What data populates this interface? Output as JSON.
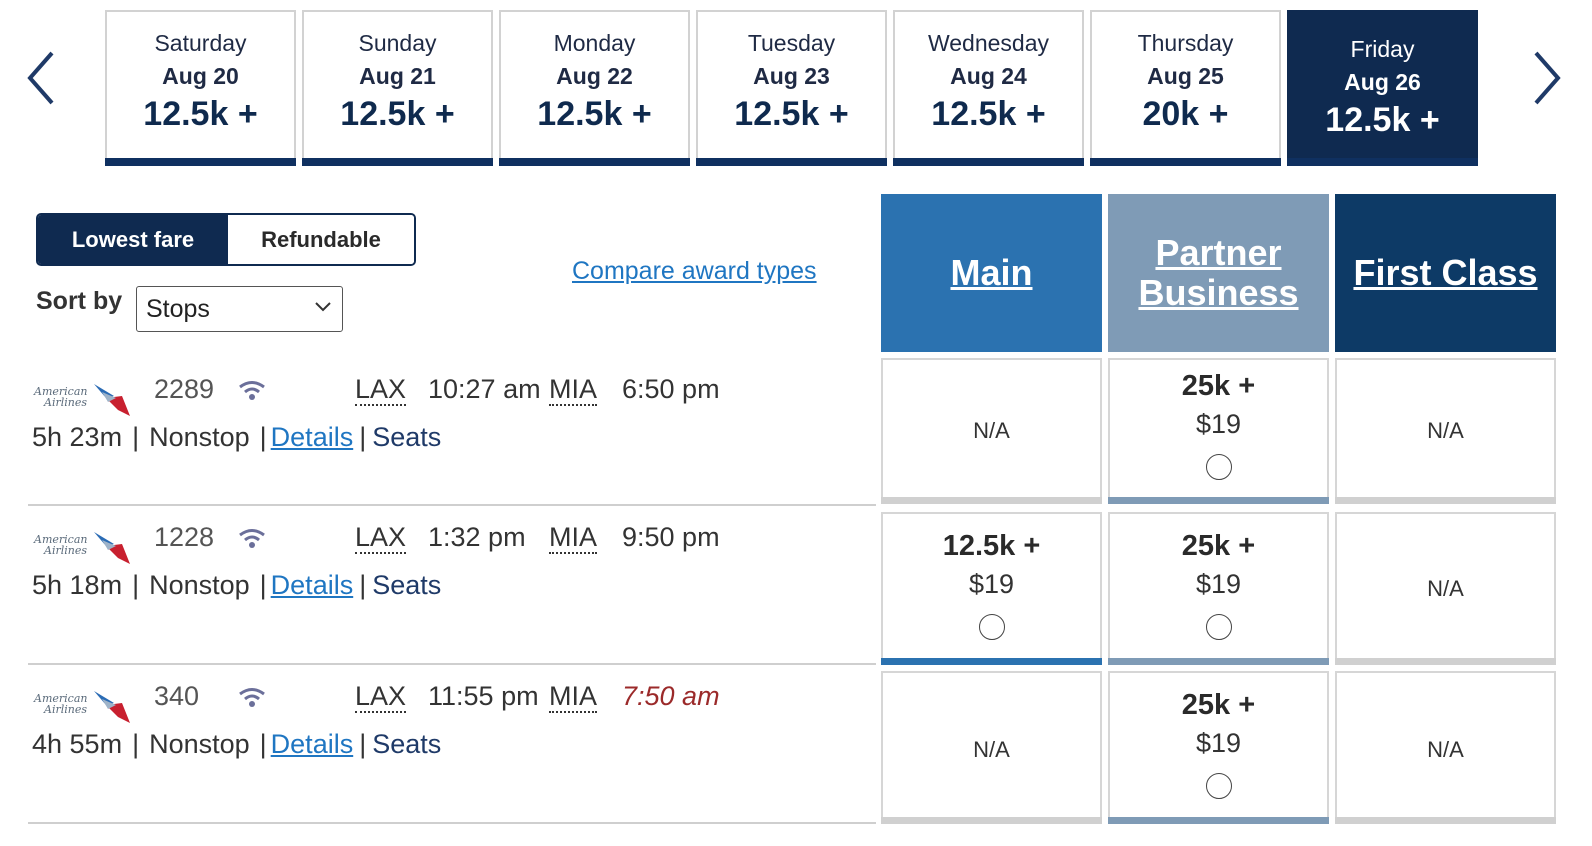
{
  "dates": [
    {
      "day": "Saturday",
      "date": "Aug 20",
      "price": "12.5k +"
    },
    {
      "day": "Sunday",
      "date": "Aug 21",
      "price": "12.5k +"
    },
    {
      "day": "Monday",
      "date": "Aug 22",
      "price": "12.5k +"
    },
    {
      "day": "Tuesday",
      "date": "Aug 23",
      "price": "12.5k +"
    },
    {
      "day": "Wednesday",
      "date": "Aug 24",
      "price": "12.5k +"
    },
    {
      "day": "Thursday",
      "date": "Aug 25",
      "price": "20k +"
    },
    {
      "day": "Friday",
      "date": "Aug 26",
      "price": "12.5k +",
      "selected": true
    }
  ],
  "fare_toggle": {
    "lowest": "Lowest fare",
    "refundable": "Refundable"
  },
  "sort": {
    "label": "Sort by",
    "value": "Stops"
  },
  "compare_link": "Compare award types",
  "cabins": {
    "main": "Main",
    "partner_line1": "Partner",
    "partner_line2": "Business",
    "first": "First Class"
  },
  "flights": [
    {
      "airline": "American Airlines",
      "flight_number": "2289",
      "dep_airport": "LAX",
      "dep_time": "10:27 am",
      "arr_airport": "MIA",
      "arr_time": "6:50 pm",
      "duration": "5h 23m",
      "stops": "Nonstop",
      "details": "Details",
      "seats": "Seats",
      "divider": "|",
      "fares": {
        "main": {
          "na": "N/A"
        },
        "partner": {
          "miles": "25k +",
          "fee": "$19"
        },
        "first": {
          "na": "N/A"
        }
      }
    },
    {
      "airline": "American Airlines",
      "flight_number": "1228",
      "dep_airport": "LAX",
      "dep_time": "1:32 pm",
      "arr_airport": "MIA",
      "arr_time": "9:50 pm",
      "duration": "5h 18m",
      "stops": "Nonstop",
      "details": "Details",
      "seats": "Seats",
      "divider": "|",
      "fares": {
        "main": {
          "miles": "12.5k +",
          "fee": "$19"
        },
        "partner": {
          "miles": "25k +",
          "fee": "$19"
        },
        "first": {
          "na": "N/A"
        }
      }
    },
    {
      "airline": "American Airlines",
      "flight_number": "340",
      "dep_airport": "LAX",
      "dep_time": "11:55 pm",
      "arr_airport": "MIA",
      "arr_time": "7:50 am",
      "duration": "4h 55m",
      "stops": "Nonstop",
      "details": "Details",
      "seats": "Seats",
      "divider": "|",
      "fares": {
        "main": {
          "na": "N/A"
        },
        "partner": {
          "miles": "25k +",
          "fee": "$19"
        },
        "first": {
          "na": "N/A"
        }
      }
    }
  ],
  "colors": {
    "navy": "#0f2a50",
    "main": "#2b72b0",
    "partner": "#7f9bb6",
    "first": "#0d3a66",
    "link": "#1f76c2",
    "next_day": "#9b2a2a"
  }
}
